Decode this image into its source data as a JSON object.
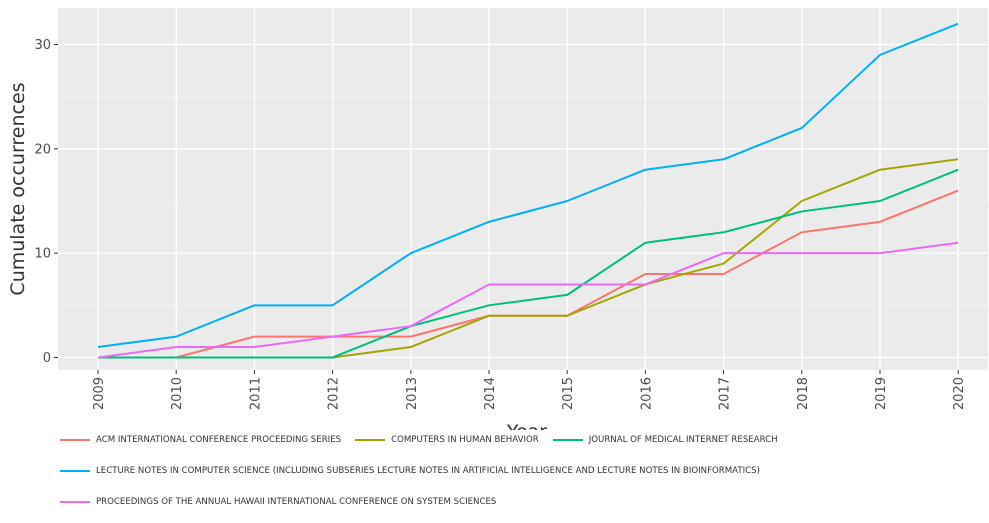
{
  "chart_data": {
    "type": "line",
    "xlabel": "Year",
    "ylabel": "Cumulate occurrences",
    "x": [
      "2009",
      "2010",
      "2011",
      "2012",
      "2013",
      "2014",
      "2015",
      "2016",
      "2017",
      "2018",
      "2019",
      "2020"
    ],
    "ylim": [
      -1.2,
      33.5
    ],
    "yticks": [
      0,
      10,
      20,
      30
    ],
    "grid": true,
    "legend_position": "bottom",
    "series": [
      {
        "name": "ACM INTERNATIONAL CONFERENCE PROCEEDING SERIES",
        "color": "#F8766D",
        "values": [
          0,
          0,
          2,
          2,
          2,
          4,
          4,
          8,
          8,
          12,
          13,
          16
        ]
      },
      {
        "name": "COMPUTERS IN HUMAN BEHAVIOR",
        "color": "#A3A500",
        "values": [
          0,
          0,
          0,
          0,
          1,
          4,
          4,
          7,
          9,
          15,
          18,
          19
        ]
      },
      {
        "name": "JOURNAL OF MEDICAL INTERNET RESEARCH",
        "color": "#00BF7D",
        "values": [
          0,
          0,
          0,
          0,
          3,
          5,
          6,
          11,
          12,
          14,
          15,
          18
        ]
      },
      {
        "name": "LECTURE NOTES IN COMPUTER SCIENCE (INCLUDING SUBSERIES LECTURE NOTES IN ARTIFICIAL INTELLIGENCE AND LECTURE NOTES IN BIOINFORMATICS)",
        "color": "#00B0F6",
        "values": [
          1,
          2,
          5,
          5,
          10,
          13,
          15,
          18,
          19,
          22,
          29,
          32
        ]
      },
      {
        "name": "PROCEEDINGS OF THE ANNUAL HAWAII INTERNATIONAL CONFERENCE ON SYSTEM SCIENCES",
        "color": "#E76BF3",
        "values": [
          0,
          1,
          1,
          2,
          3,
          7,
          7,
          7,
          10,
          10,
          10,
          11
        ]
      }
    ]
  }
}
